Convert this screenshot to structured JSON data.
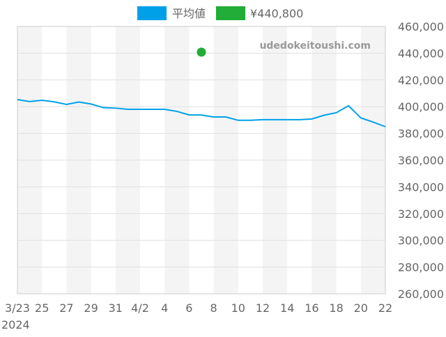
{
  "chart_data": {
    "type": "line",
    "legend": {
      "placement": "top",
      "entries": [
        "平均値",
        "¥440,800"
      ]
    },
    "watermark": "udedokeitoushi.com",
    "x": [
      "2024-03-23",
      "2024-03-24",
      "2024-03-25",
      "2024-03-26",
      "2024-03-27",
      "2024-03-28",
      "2024-03-29",
      "2024-03-30",
      "2024-03-31",
      "2024-04-01",
      "2024-04-02",
      "2024-04-03",
      "2024-04-04",
      "2024-04-05",
      "2024-04-06",
      "2024-04-07",
      "2024-04-08",
      "2024-04-09",
      "2024-04-10",
      "2024-04-11",
      "2024-04-12",
      "2024-04-13",
      "2024-04-14",
      "2024-04-15",
      "2024-04-16",
      "2024-04-17",
      "2024-04-18",
      "2024-04-19",
      "2024-04-20",
      "2024-04-21",
      "2024-04-22"
    ],
    "series": [
      {
        "name": "平均値",
        "color": "#00a0e9",
        "type": "line",
        "values": [
          405300,
          403800,
          404800,
          403600,
          401700,
          403500,
          402000,
          399300,
          398900,
          398000,
          398000,
          398000,
          398000,
          396500,
          393800,
          393800,
          392300,
          392300,
          389800,
          389800,
          390300,
          390300,
          390300,
          390300,
          390800,
          393600,
          395500,
          400700,
          391600,
          388500,
          385000
        ]
      },
      {
        "name": "¥440,800",
        "color": "#22ac38",
        "type": "point",
        "points": [
          {
            "x": "2024-04-07",
            "y": 440800
          }
        ]
      }
    ],
    "x_tick_labels": [
      "3/23",
      "25",
      "27",
      "29",
      "31",
      "4/2",
      "4",
      "6",
      "8",
      "10",
      "12",
      "14",
      "16",
      "18",
      "20",
      "22"
    ],
    "x_year_label": "2024",
    "y_tick_labels": [
      "460,000",
      "440,000",
      "420,000",
      "400,000",
      "380,000",
      "360,000",
      "340,000",
      "320,000",
      "300,000",
      "280,000",
      "260,000"
    ],
    "ylim": [
      260000,
      460000
    ],
    "y_axis_position": "right",
    "grid": true,
    "alternating_bands": true
  }
}
